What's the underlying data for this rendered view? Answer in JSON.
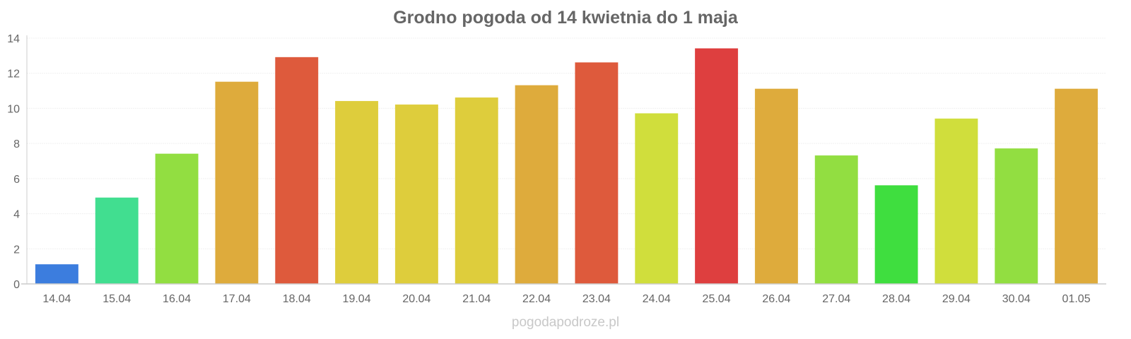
{
  "chart_data": {
    "type": "bar",
    "title": "Grodno pogoda od 14 kwietnia do 1 maja",
    "xlabel": "",
    "ylabel": "",
    "ylim": [
      0,
      14
    ],
    "yticks": [
      "0",
      "2",
      "4",
      "6",
      "8",
      "10",
      "12",
      "14"
    ],
    "grid": true,
    "categories": [
      "14.04",
      "15.04",
      "16.04",
      "17.04",
      "18.04",
      "19.04",
      "20.04",
      "21.04",
      "22.04",
      "23.04",
      "24.04",
      "25.04",
      "26.04",
      "27.04",
      "28.04",
      "29.04",
      "30.04",
      "01.05"
    ],
    "values": [
      1.1,
      4.9,
      7.4,
      11.5,
      12.9,
      10.4,
      10.2,
      10.6,
      11.3,
      12.6,
      9.7,
      13.4,
      11.1,
      7.3,
      5.6,
      9.4,
      7.7,
      11.1
    ],
    "colors": [
      "#3176dc",
      "#37dc8a",
      "#8cdc37",
      "#dca731",
      "#dc5131",
      "#dcca31",
      "#dcca31",
      "#dcca31",
      "#dca731",
      "#dc5131",
      "#cddc31",
      "#dc3535",
      "#dca731",
      "#8cdc37",
      "#35dc35",
      "#cddc31",
      "#8cdc37",
      "#dca731"
    ]
  },
  "credit": "pogodapodroze.pl"
}
